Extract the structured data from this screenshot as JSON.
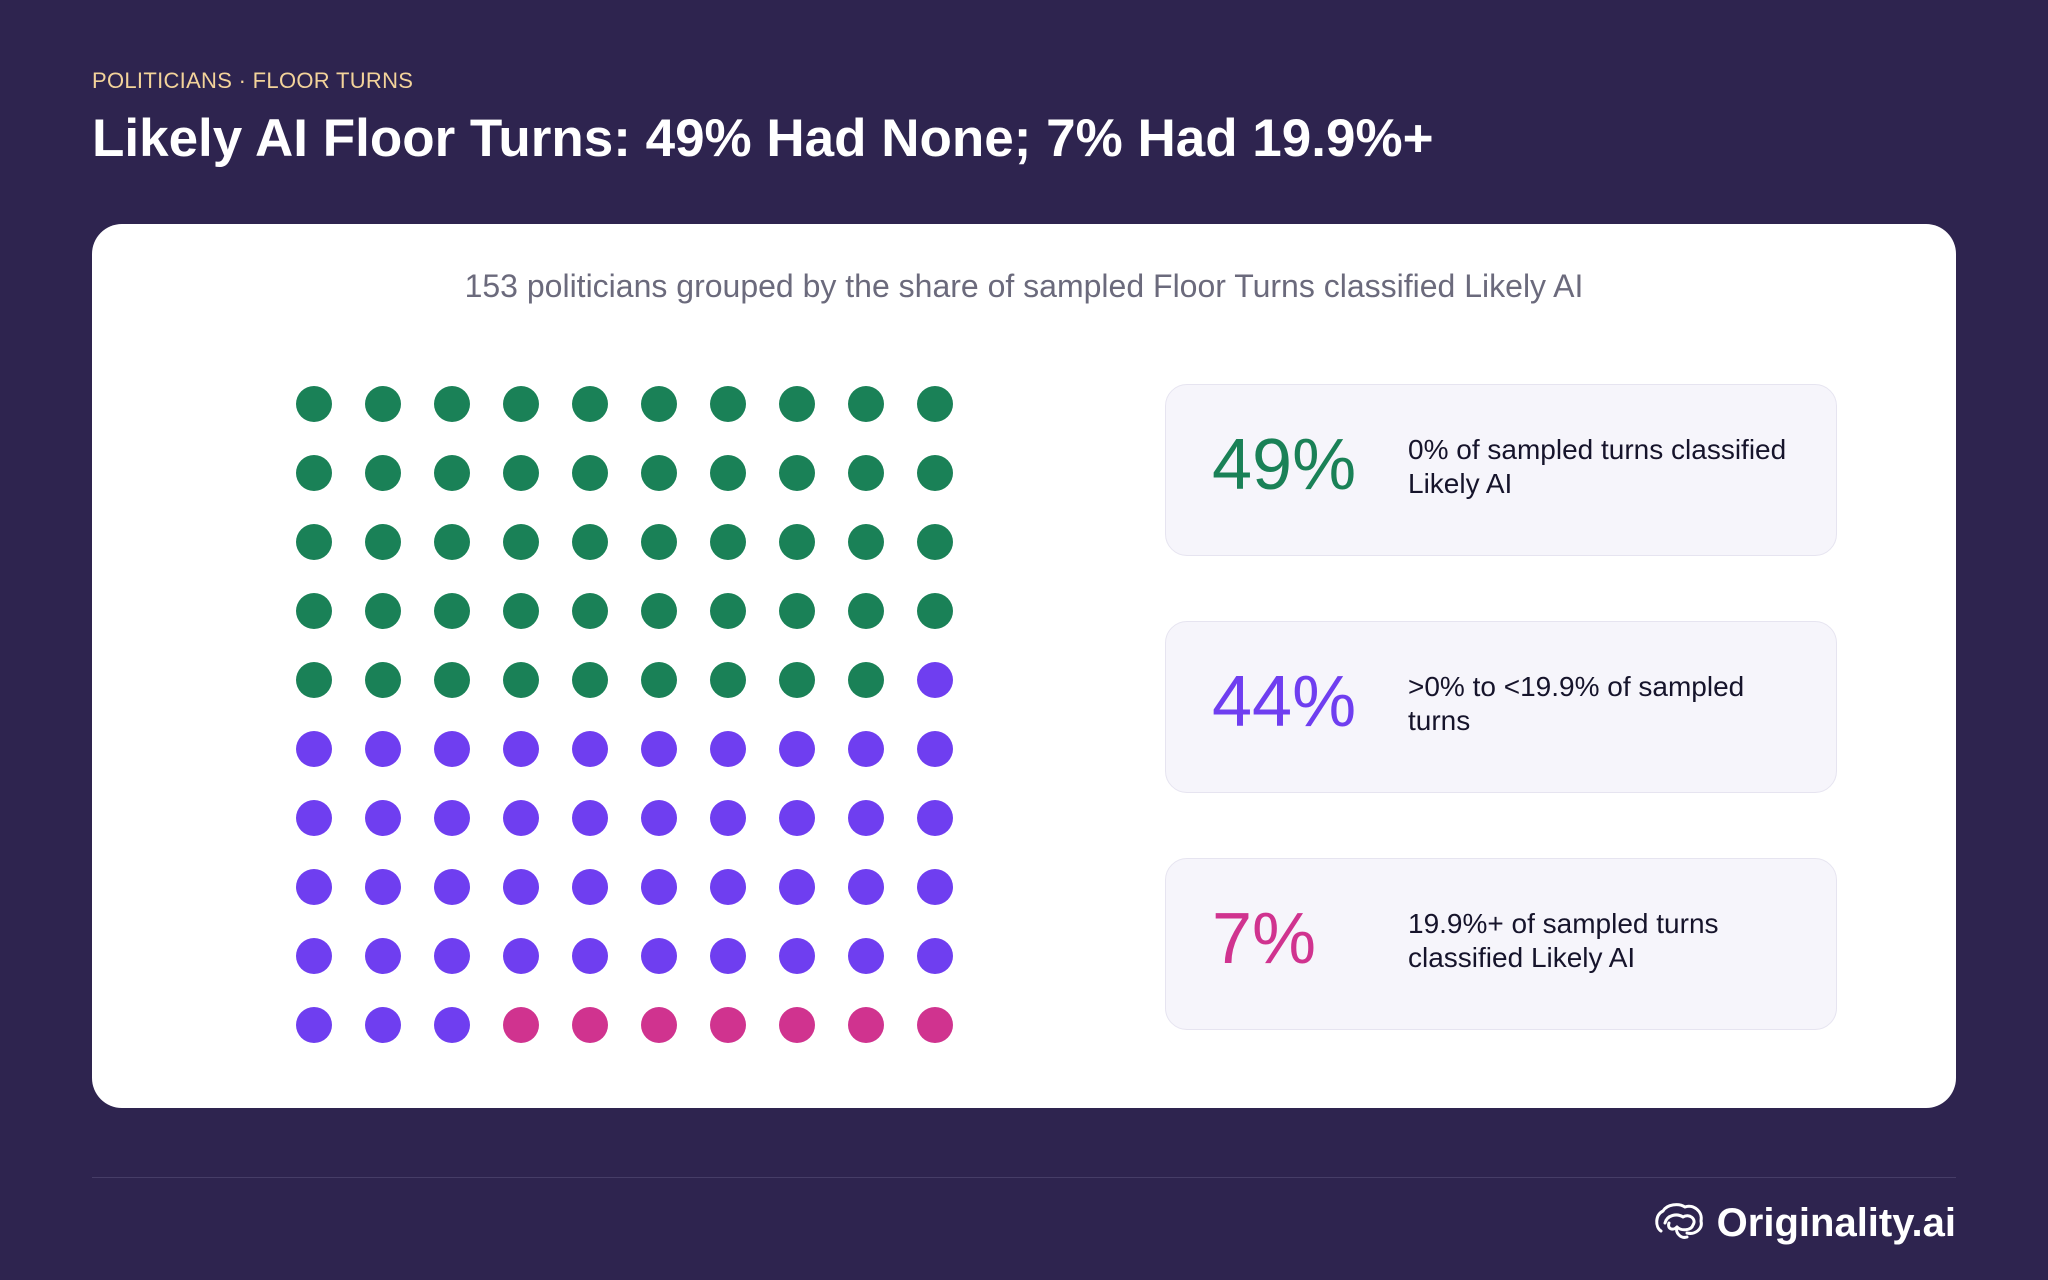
{
  "header": {
    "eyebrow": "POLITICIANS · FLOOR TURNS",
    "title": "Likely AI Floor Turns: 49% Had None; 7% Had 19.9%+"
  },
  "brand": {
    "name": "Originality.ai",
    "icon": "brain-icon"
  },
  "colors": {
    "background": "#2e244f",
    "eyebrow": "#f3d39a",
    "none": "#1a8157",
    "some": "#6f3ef0",
    "high": "#d0338f"
  },
  "chart_data": {
    "type": "waffle",
    "title": "153 politicians grouped by the share of sampled Floor Turns classified Likely AI",
    "grid": {
      "rows": 10,
      "cols": 10
    },
    "series": [
      {
        "name": "0% of sampled turns classified Likely AI",
        "percent": 49,
        "label": "49%",
        "color": "#1a8157"
      },
      {
        "name": ">0% to <19.9% of sampled turns",
        "percent": 44,
        "label": "44%",
        "color": "#6f3ef0"
      },
      {
        "name": "19.9%+ of sampled turns classified Likely AI",
        "percent": 7,
        "label": "7%",
        "color": "#d0338f"
      }
    ]
  }
}
